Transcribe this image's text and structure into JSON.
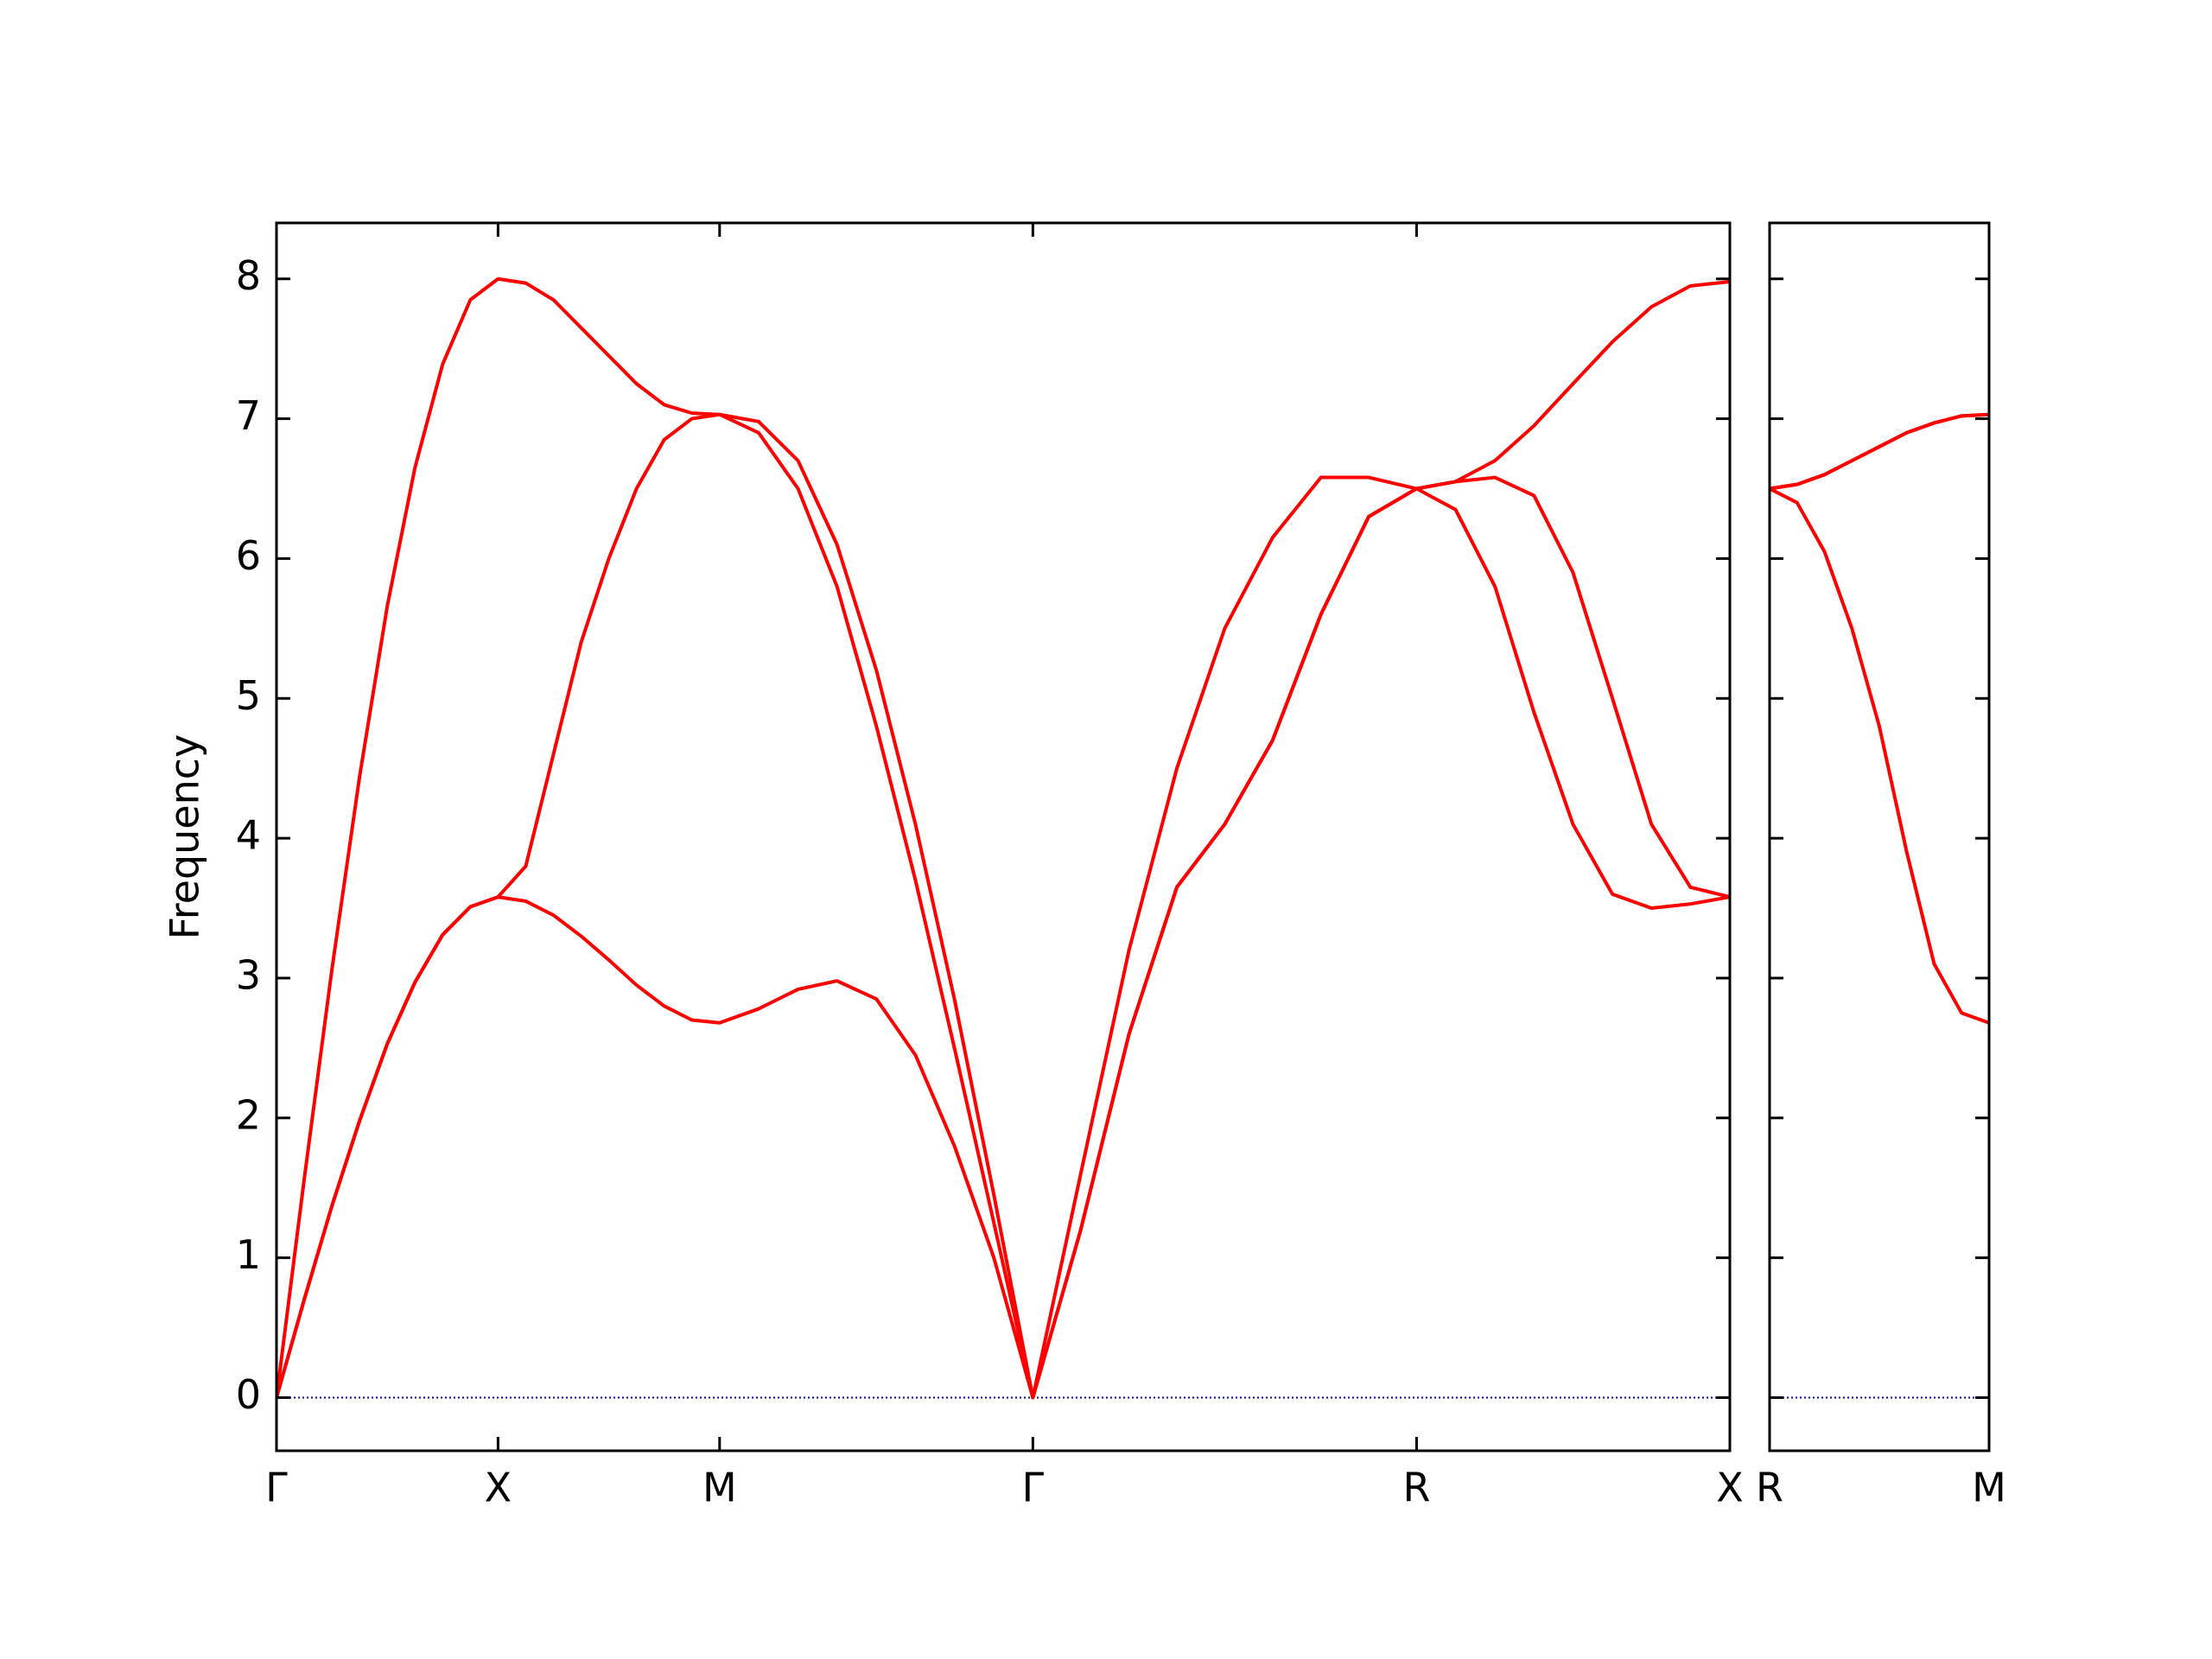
{
  "chart_data": [
    {
      "type": "line",
      "ylabel": "Frequency",
      "x": [
        0,
        0.0625,
        0.125,
        0.1875,
        0.25,
        0.3125,
        0.375,
        0.4375,
        0.5,
        0.5625,
        0.625,
        0.6875,
        0.75,
        0.8125,
        0.875,
        0.9375,
        1.0,
        1.088,
        1.177,
        1.265,
        1.354,
        1.442,
        1.53,
        1.619,
        1.707,
        1.815,
        1.924,
        2.032,
        2.14,
        2.248,
        2.357,
        2.465,
        2.573,
        2.661,
        2.75,
        2.838,
        2.926,
        3.015,
        3.103,
        3.191,
        3.28
      ],
      "series": [
        {
          "color": "#ff0000",
          "values": [
            0,
            0.7,
            1.37,
            1.98,
            2.53,
            2.97,
            3.31,
            3.51,
            3.58,
            3.55,
            3.45,
            3.3,
            3.13,
            2.95,
            2.8,
            2.7,
            2.68,
            2.78,
            2.92,
            2.98,
            2.85,
            2.45,
            1.8,
            1.0,
            0,
            1.2,
            2.6,
            3.65,
            4.1,
            4.7,
            5.6,
            6.3,
            6.5,
            6.35,
            5.8,
            4.9,
            4.1,
            3.6,
            3.5,
            3.53,
            3.58
          ]
        },
        {
          "color": "#ff0000",
          "values": [
            0,
            0.7,
            1.37,
            1.98,
            2.53,
            2.97,
            3.31,
            3.51,
            3.58,
            3.8,
            4.6,
            5.4,
            6.0,
            6.5,
            6.85,
            7.0,
            7.03,
            6.9,
            6.5,
            5.8,
            4.8,
            3.7,
            2.5,
            1.25,
            0,
            1.2,
            2.6,
            3.65,
            4.1,
            4.7,
            5.6,
            6.3,
            6.5,
            6.55,
            6.58,
            6.45,
            5.9,
            5.0,
            4.1,
            3.65,
            3.58
          ]
        },
        {
          "color": "#ff0000",
          "values": [
            0,
            1.56,
            3.06,
            4.44,
            5.66,
            6.65,
            7.39,
            7.85,
            8.0,
            7.97,
            7.85,
            7.65,
            7.45,
            7.25,
            7.1,
            7.04,
            7.03,
            6.98,
            6.7,
            6.1,
            5.2,
            4.1,
            2.85,
            1.45,
            0,
            1.6,
            3.2,
            4.5,
            5.5,
            6.15,
            6.58,
            6.58,
            6.5,
            6.55,
            6.7,
            6.95,
            7.25,
            7.55,
            7.8,
            7.95,
            7.98
          ]
        }
      ],
      "xlim": [
        0,
        3.28
      ],
      "xticks": [
        {
          "value": 0,
          "label": "Γ"
        },
        {
          "value": 0.5,
          "label": "X"
        },
        {
          "value": 1.0,
          "label": "M"
        },
        {
          "value": 1.707,
          "label": "Γ"
        },
        {
          "value": 2.573,
          "label": "R"
        },
        {
          "value": 3.28,
          "label": "X"
        }
      ],
      "ylim": [
        -0.38,
        8.4
      ],
      "yticks": [
        0,
        1,
        2,
        3,
        4,
        5,
        6,
        7,
        8
      ],
      "zero_line": {
        "value": 0,
        "color": "#0000aa"
      }
    },
    {
      "type": "line",
      "x": [
        3.28,
        3.3425,
        3.405,
        3.4675,
        3.53,
        3.5925,
        3.655,
        3.7175,
        3.78
      ],
      "series": [
        {
          "color": "#ff0000",
          "values": [
            6.5,
            6.4,
            6.05,
            5.5,
            4.8,
            3.9,
            3.1,
            2.75,
            2.68
          ]
        },
        {
          "color": "#ff0000",
          "values": [
            6.5,
            6.53,
            6.6,
            6.7,
            6.8,
            6.9,
            6.97,
            7.02,
            7.03
          ]
        },
        {
          "color": "#ff0000",
          "values": [
            6.5,
            6.53,
            6.6,
            6.7,
            6.8,
            6.9,
            6.97,
            7.02,
            7.03
          ]
        }
      ],
      "xlim": [
        3.28,
        3.78
      ],
      "xticks": [
        {
          "value": 3.28,
          "label": "R"
        },
        {
          "value": 3.78,
          "label": "M"
        }
      ],
      "ylim": [
        -0.38,
        8.4
      ],
      "yticks": [
        0,
        1,
        2,
        3,
        4,
        5,
        6,
        7,
        8
      ],
      "show_ytick_labels": false,
      "zero_line": {
        "value": 0,
        "color": "#0000aa"
      }
    }
  ]
}
